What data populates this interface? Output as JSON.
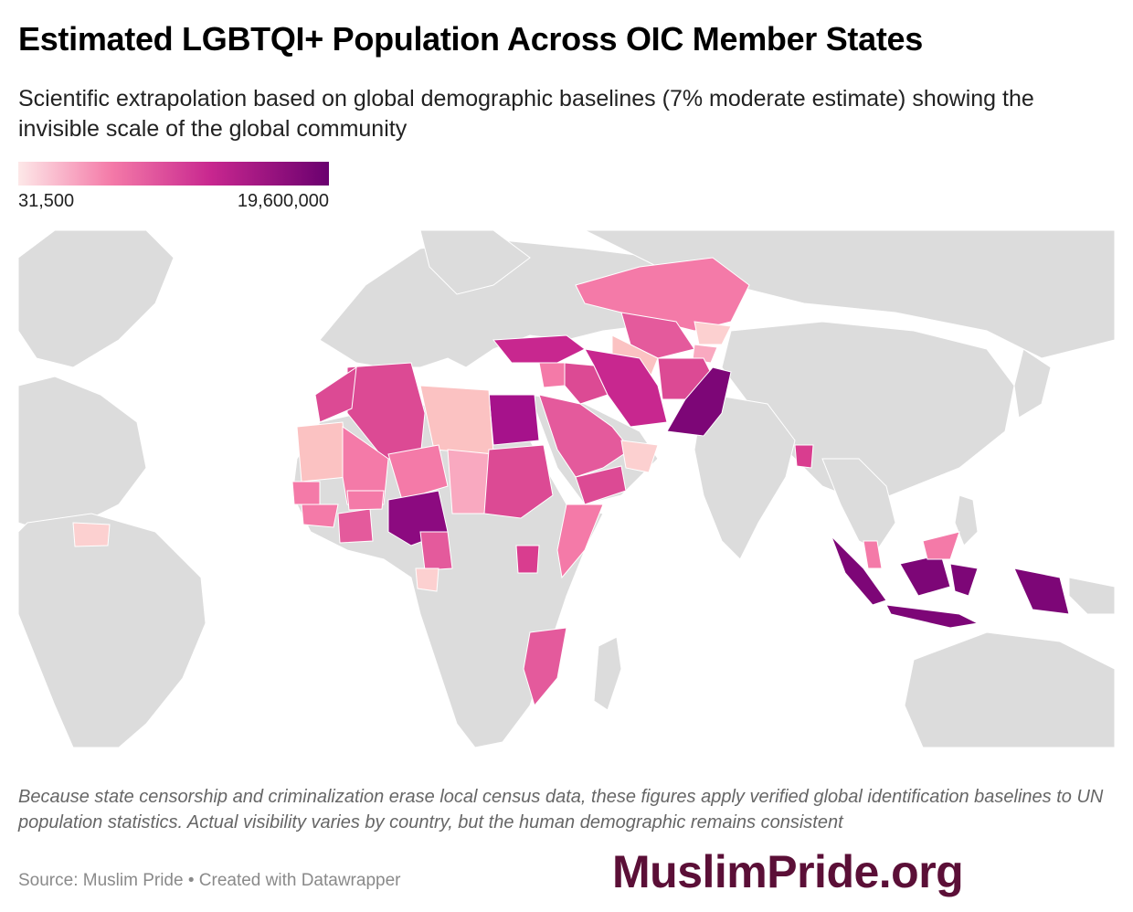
{
  "title": "Estimated LGBTQI+ Population Across OIC Member States",
  "subtitle": "Scientific extrapolation based on global demographic baselines (7% moderate estimate) showing the invisible scale of the global community",
  "legend": {
    "min_label": "31,500",
    "max_label": "19,600,000",
    "colors": [
      "#fde8e8",
      "#f47aa8",
      "#c8278f",
      "#6a006f"
    ]
  },
  "map": {
    "land_color": "#dcdcdc",
    "border_color": "#ffffff",
    "highlighted_regions": [
      "Indonesia",
      "Pakistan",
      "Nigeria",
      "Egypt",
      "Iran",
      "Turkey",
      "Bangladesh",
      "Algeria",
      "Saudi Arabia",
      "Sudan",
      "Morocco",
      "Mali",
      "Niger",
      "Libya",
      "Mauritania",
      "Chad",
      "Mozambique",
      "Uganda",
      "Somalia",
      "Yemen",
      "Oman",
      "Kazakhstan",
      "Uzbekistan",
      "Afghanistan",
      "Malaysia",
      "Iraq",
      "Syria"
    ]
  },
  "note": "Because state censorship and criminalization erase local census data, these figures apply verified global identification baselines to UN population statistics. Actual visibility varies by country, but the human demographic remains consistent",
  "source": "Source: Muslim Pride • Created with Datawrapper",
  "brand": "MuslimPride.org"
}
